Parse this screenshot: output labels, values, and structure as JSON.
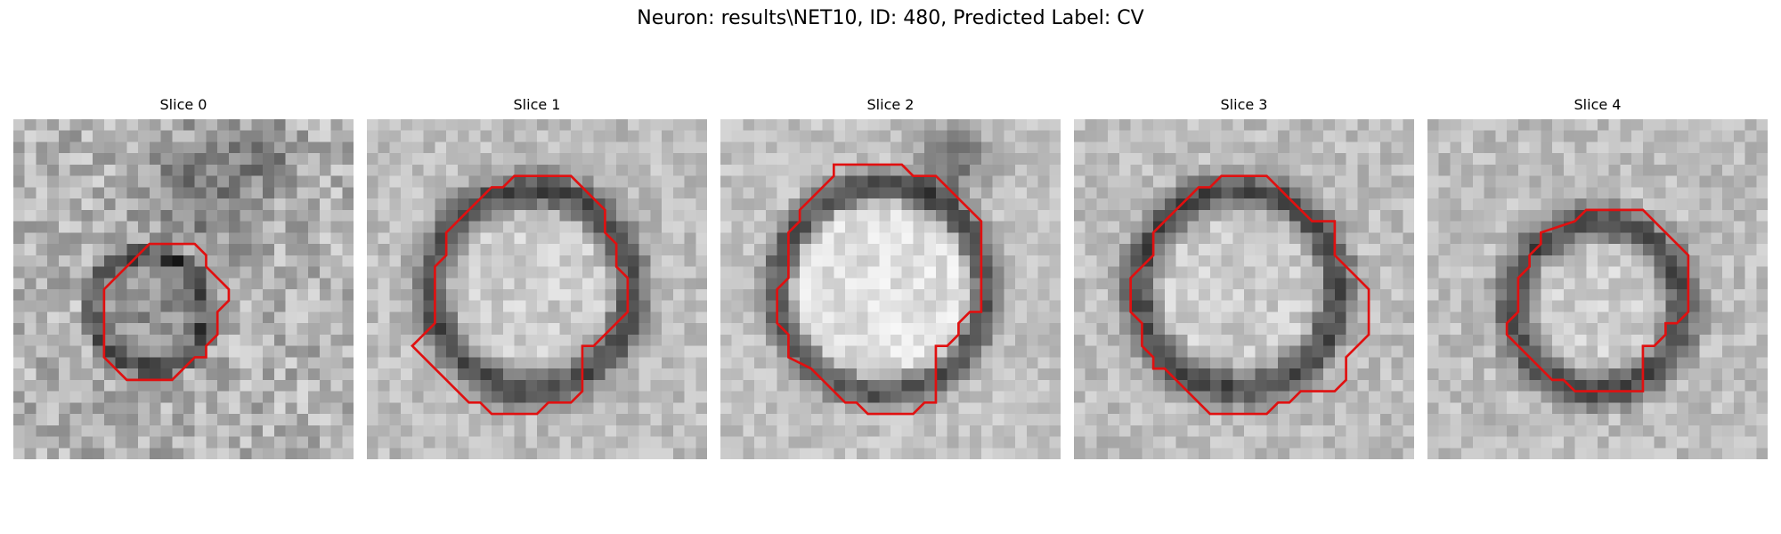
{
  "figure": {
    "title": "Neuron: results\\NET10, ID: 480, Predicted Label: CV"
  },
  "colors": {
    "contour": "#e01010",
    "background": "#ffffff"
  },
  "slices": [
    {
      "title": "Slice 0",
      "image": "noisy-grayscale-membrane-patch",
      "contour": [
        [
          11,
          12
        ],
        [
          12,
          11
        ],
        [
          16,
          11
        ],
        [
          17,
          12
        ],
        [
          17,
          13
        ],
        [
          18,
          14
        ],
        [
          19,
          15
        ],
        [
          19,
          16
        ],
        [
          18,
          17
        ],
        [
          18,
          19
        ],
        [
          17,
          20
        ],
        [
          17,
          21
        ],
        [
          16,
          21
        ],
        [
          15,
          22
        ],
        [
          14,
          23
        ],
        [
          10,
          23
        ],
        [
          9,
          22
        ],
        [
          8,
          21
        ],
        [
          8,
          15
        ],
        [
          9,
          14
        ],
        [
          10,
          13
        ]
      ]
    },
    {
      "title": "Slice 1",
      "image": "dark-ring-vesicle",
      "contour": [
        [
          13,
          5
        ],
        [
          18,
          5
        ],
        [
          19,
          6
        ],
        [
          20,
          7
        ],
        [
          21,
          8
        ],
        [
          21,
          10
        ],
        [
          22,
          11
        ],
        [
          22,
          13
        ],
        [
          23,
          14
        ],
        [
          23,
          17
        ],
        [
          22,
          18
        ],
        [
          21,
          19
        ],
        [
          20,
          20
        ],
        [
          19,
          20
        ],
        [
          19,
          24
        ],
        [
          18,
          25
        ],
        [
          16,
          25
        ],
        [
          15,
          26
        ],
        [
          11,
          26
        ],
        [
          10,
          25
        ],
        [
          9,
          25
        ],
        [
          8,
          24
        ],
        [
          7,
          23
        ],
        [
          6,
          22
        ],
        [
          5,
          21
        ],
        [
          4,
          20
        ],
        [
          5,
          19
        ],
        [
          6,
          18
        ],
        [
          6,
          13
        ],
        [
          7,
          12
        ],
        [
          7,
          10
        ],
        [
          8,
          9
        ],
        [
          9,
          8
        ],
        [
          10,
          7
        ],
        [
          11,
          6
        ],
        [
          12,
          6
        ]
      ]
    },
    {
      "title": "Slice 2",
      "image": "bright-vesicle",
      "contour": [
        [
          10,
          4
        ],
        [
          16,
          4
        ],
        [
          17,
          5
        ],
        [
          19,
          5
        ],
        [
          20,
          6
        ],
        [
          21,
          7
        ],
        [
          22,
          8
        ],
        [
          23,
          9
        ],
        [
          23,
          17
        ],
        [
          22,
          17
        ],
        [
          21,
          18
        ],
        [
          21,
          19
        ],
        [
          20,
          20
        ],
        [
          19,
          20
        ],
        [
          19,
          25
        ],
        [
          18,
          25
        ],
        [
          17,
          26
        ],
        [
          13,
          26
        ],
        [
          12,
          25
        ],
        [
          11,
          25
        ],
        [
          10,
          24
        ],
        [
          9,
          23
        ],
        [
          8,
          22
        ],
        [
          6,
          21
        ],
        [
          6,
          19
        ],
        [
          5,
          18
        ],
        [
          5,
          15
        ],
        [
          6,
          14
        ],
        [
          6,
          10
        ],
        [
          7,
          9
        ],
        [
          7,
          8
        ],
        [
          8,
          7
        ],
        [
          9,
          6
        ],
        [
          10,
          5
        ]
      ]
    },
    {
      "title": "Slice 3",
      "image": "dark-ring-vesicle",
      "contour": [
        [
          13,
          5
        ],
        [
          17,
          5
        ],
        [
          18,
          6
        ],
        [
          19,
          7
        ],
        [
          20,
          8
        ],
        [
          21,
          9
        ],
        [
          23,
          9
        ],
        [
          23,
          12
        ],
        [
          24,
          13
        ],
        [
          25,
          14
        ],
        [
          26,
          15
        ],
        [
          26,
          19
        ],
        [
          25,
          20
        ],
        [
          24,
          21
        ],
        [
          24,
          23
        ],
        [
          23,
          24
        ],
        [
          20,
          24
        ],
        [
          19,
          25
        ],
        [
          18,
          25
        ],
        [
          17,
          26
        ],
        [
          12,
          26
        ],
        [
          11,
          25
        ],
        [
          10,
          24
        ],
        [
          9,
          23
        ],
        [
          8,
          22
        ],
        [
          7,
          22
        ],
        [
          7,
          21
        ],
        [
          6,
          20
        ],
        [
          6,
          18
        ],
        [
          5,
          17
        ],
        [
          5,
          14
        ],
        [
          6,
          13
        ],
        [
          7,
          12
        ],
        [
          7,
          10
        ],
        [
          8,
          9
        ],
        [
          9,
          8
        ],
        [
          10,
          7
        ],
        [
          11,
          6
        ],
        [
          12,
          6
        ]
      ]
    },
    {
      "title": "Slice 4",
      "image": "dark-ring-vesicle",
      "contour": [
        [
          13,
          9
        ],
        [
          14,
          8
        ],
        [
          19,
          8
        ],
        [
          20,
          9
        ],
        [
          21,
          10
        ],
        [
          22,
          11
        ],
        [
          23,
          12
        ],
        [
          23,
          17
        ],
        [
          22,
          18
        ],
        [
          21,
          18
        ],
        [
          21,
          19
        ],
        [
          20,
          20
        ],
        [
          19,
          20
        ],
        [
          19,
          24
        ],
        [
          13,
          24
        ],
        [
          12,
          23
        ],
        [
          11,
          23
        ],
        [
          10,
          22
        ],
        [
          9,
          21
        ],
        [
          8,
          20
        ],
        [
          7,
          19
        ],
        [
          7,
          18
        ],
        [
          8,
          17
        ],
        [
          8,
          14
        ],
        [
          9,
          13
        ],
        [
          9,
          12
        ],
        [
          10,
          11
        ],
        [
          10,
          10
        ]
      ]
    }
  ]
}
